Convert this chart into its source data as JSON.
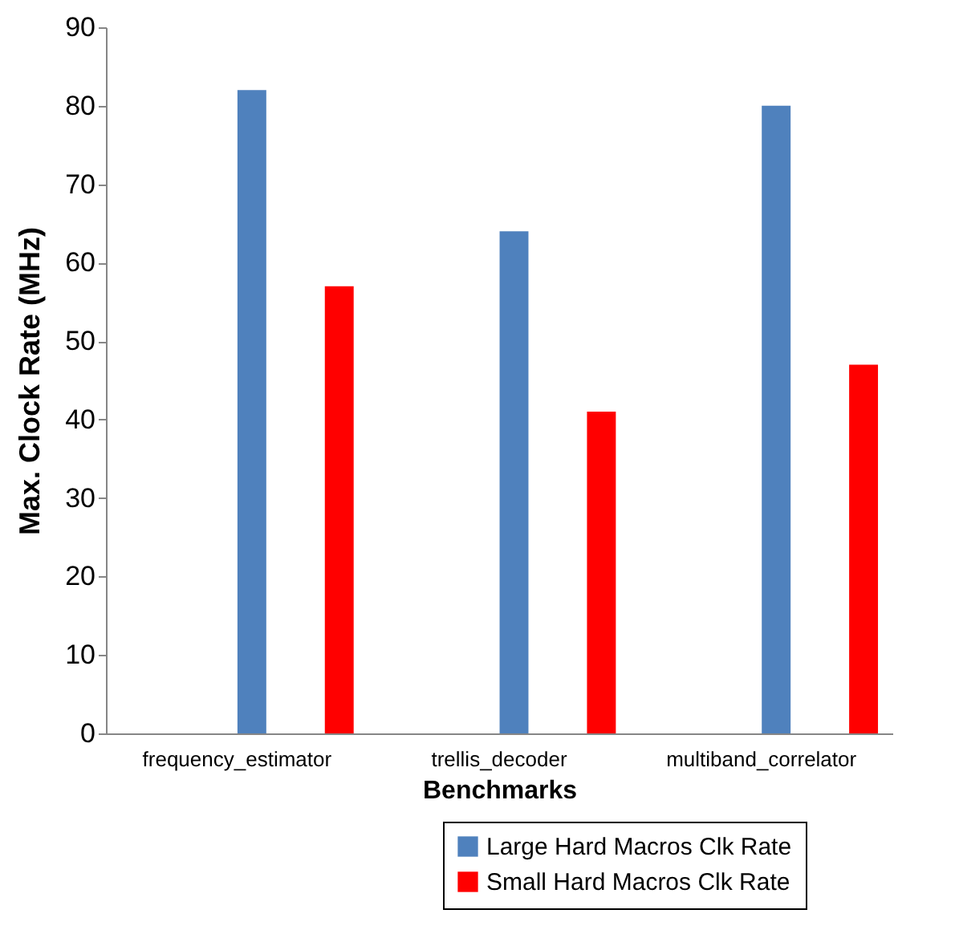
{
  "chart_data": {
    "type": "bar",
    "xlabel": "Benchmarks",
    "ylabel": "Max. Clock Rate (MHz)",
    "categories": [
      "frequency_estimator",
      "trellis_decoder",
      "multiband_correlator"
    ],
    "series": [
      {
        "name": "Large Hard Macros Clk Rate",
        "color": "#4f81bd",
        "values": [
          82,
          64,
          80
        ]
      },
      {
        "name": "Small Hard Macros Clk Rate",
        "color": "#ff0000",
        "values": [
          57,
          41,
          47
        ]
      }
    ],
    "ylim": [
      0,
      90
    ],
    "yticks": [
      0,
      10,
      20,
      30,
      40,
      50,
      60,
      70,
      80,
      90
    ],
    "grid": false,
    "legend": "bottom right"
  }
}
